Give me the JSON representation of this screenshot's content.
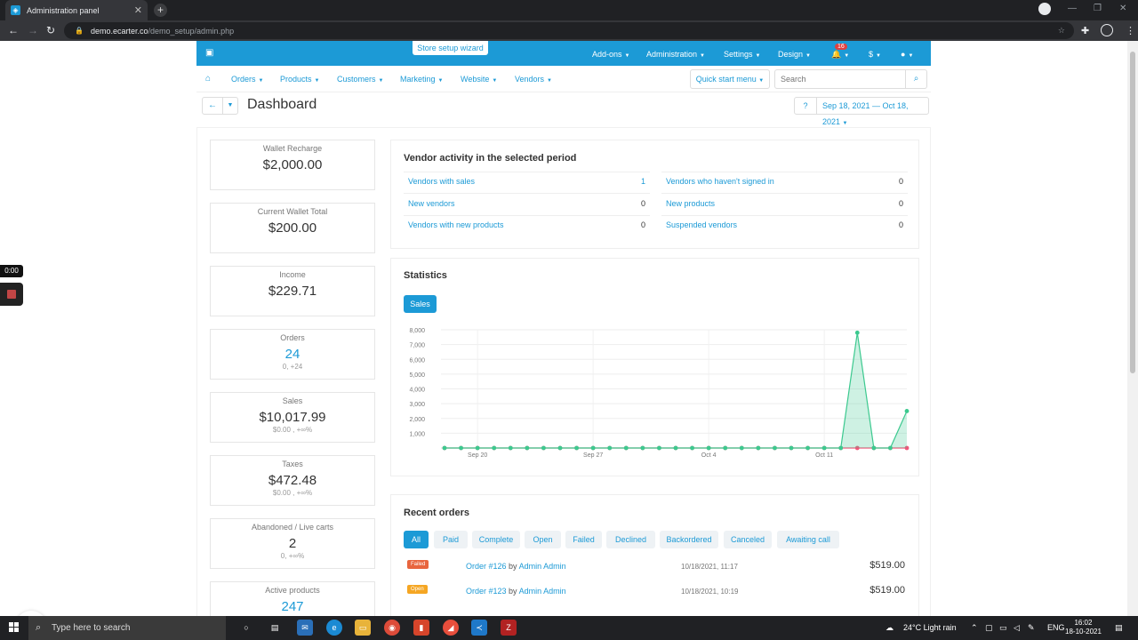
{
  "browser": {
    "tab_title": "Administration panel",
    "tab_close": "✕",
    "new_tab": "+",
    "url_host": "demo.ecarter.co",
    "url_path": "/demo_setup/admin.php"
  },
  "header": {
    "wizard": "Store setup wizard",
    "menus": [
      "Add-ons",
      "Administration",
      "Settings",
      "Design"
    ],
    "notifications_count": "16",
    "currency": "$"
  },
  "nav": {
    "items": [
      "Orders",
      "Products",
      "Customers",
      "Marketing",
      "Website",
      "Vendors"
    ],
    "quick_start": "Quick start menu",
    "search_placeholder": "Search"
  },
  "page": {
    "title": "Dashboard",
    "date_range": "Sep 18, 2021 — Oct 18, 2021"
  },
  "stats": [
    {
      "label": "Wallet Recharge",
      "value": "$2,000.00",
      "sub": ""
    },
    {
      "label": "Current Wallet Total",
      "value": "$200.00",
      "sub": ""
    },
    {
      "label": "Income",
      "value": "$229.71",
      "sub": ""
    },
    {
      "label": "Orders",
      "value": "24",
      "sub": "0, +24"
    },
    {
      "label": "Sales",
      "value": "$10,017.99",
      "sub": "$0.00 , +∞%"
    },
    {
      "label": "Taxes",
      "value": "$472.48",
      "sub": "$0.00 , +∞%"
    },
    {
      "label": "Abandoned / Live carts",
      "value": "2",
      "sub": "0, +∞%"
    },
    {
      "label": "Active products",
      "value": "247",
      "sub": ""
    }
  ],
  "vendor_activity": {
    "title": "Vendor activity in the selected period",
    "left": [
      {
        "label": "Vendors with sales",
        "value": "1"
      },
      {
        "label": "New vendors",
        "value": "0"
      },
      {
        "label": "Vendors with new products",
        "value": "0"
      }
    ],
    "right": [
      {
        "label": "Vendors who haven't signed in",
        "value": "0"
      },
      {
        "label": "New products",
        "value": "0"
      },
      {
        "label": "Suspended vendors",
        "value": "0"
      }
    ]
  },
  "statistics": {
    "title": "Statistics",
    "tab": "Sales"
  },
  "chart_data": {
    "type": "area",
    "title": "",
    "xlabel": "",
    "ylabel": "",
    "ylim": [
      0,
      8000
    ],
    "y_ticks": [
      "8,000",
      "7,000",
      "6,000",
      "5,000",
      "4,000",
      "3,000",
      "2,000",
      "1,000"
    ],
    "x_tick_labels": [
      "Sep 20",
      "Sep 27",
      "Oct 4",
      "Oct 11"
    ],
    "grid": true,
    "series": [
      {
        "color": "#3cc98f",
        "values": [
          0,
          0,
          0,
          0,
          0,
          0,
          0,
          0,
          0,
          0,
          0,
          0,
          0,
          0,
          0,
          0,
          0,
          0,
          0,
          0,
          0,
          0,
          0,
          0,
          0,
          7800,
          0,
          0,
          2500
        ]
      },
      {
        "color": "#f0577a",
        "values": [
          0,
          0,
          0,
          0,
          0,
          0,
          0,
          0,
          0,
          0,
          0,
          0,
          0,
          0,
          0,
          0,
          0,
          0,
          0,
          0,
          0,
          0,
          0,
          0,
          0,
          0,
          0,
          0,
          0
        ]
      }
    ]
  },
  "recent_orders": {
    "title": "Recent orders",
    "filters": [
      "All",
      "Paid",
      "Complete",
      "Open",
      "Failed",
      "Declined",
      "Backordered",
      "Canceled",
      "Awaiting call"
    ],
    "rows": [
      {
        "status": "Failed",
        "status_color": "#e8653e",
        "order": "Order #126",
        "by": "by",
        "customer": "Admin Admin",
        "date": "10/18/2021, 11:17",
        "amount": "$519.00"
      },
      {
        "status": "Open",
        "status_color": "#f5a623",
        "order": "Order #123",
        "by": "by",
        "customer": "Admin Admin",
        "date": "10/18/2021, 10:19",
        "amount": "$519.00"
      }
    ]
  },
  "overlay": {
    "timer": "0:00"
  },
  "taskbar": {
    "search_placeholder": "Type here to search",
    "weather": "24°C  Light rain",
    "lang": "ENG",
    "time": "16:02",
    "date": "18-10-2021"
  }
}
